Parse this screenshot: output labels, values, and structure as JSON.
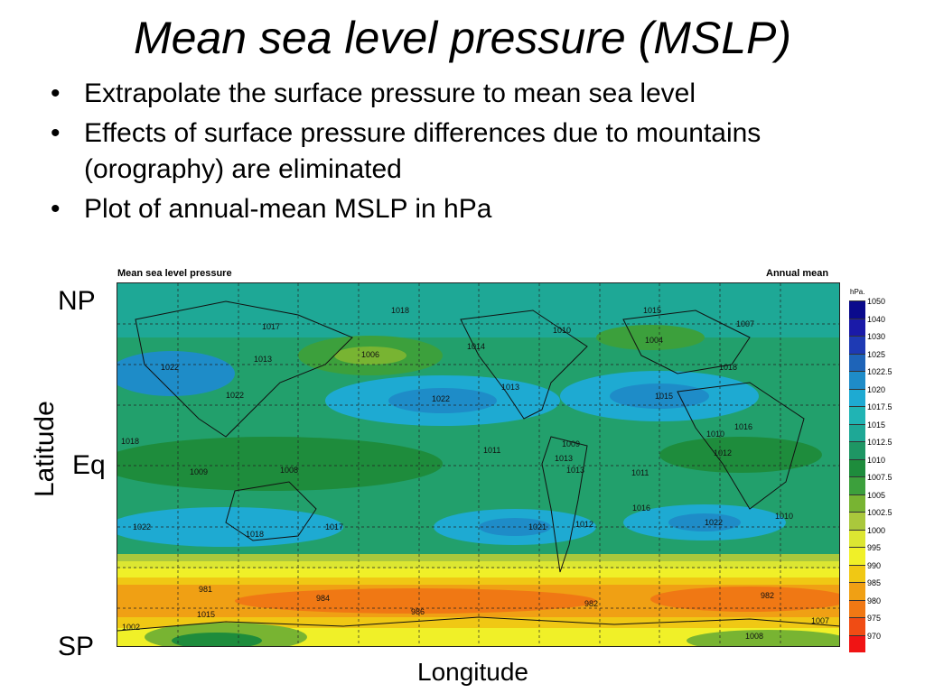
{
  "title": "Mean sea level pressure (MSLP)",
  "bullets": [
    "Extrapolate the surface pressure to mean sea level",
    "Effects of surface pressure differences due to mountains (orography) are eliminated",
    "Plot of annual-mean MSLP in hPa"
  ],
  "bullet_glyph": "•",
  "labels": {
    "np": "NP",
    "eq": "Eq",
    "sp": "SP",
    "latitude": "Latitude",
    "longitude": "Longitude"
  },
  "map": {
    "header_left": "Mean sea level pressure",
    "header_right": "Annual mean",
    "unit": "hPa.",
    "contour_labels": [
      "1018",
      "1015",
      "1017",
      "1007",
      "1004",
      "1010",
      "1006",
      "1014",
      "1013",
      "1022",
      "1013",
      "1018",
      "1022",
      "1015",
      "1022",
      "1016",
      "1011",
      "1009",
      "1013",
      "1010",
      "1012",
      "1011",
      "1009",
      "1018",
      "1008",
      "1013",
      "1016",
      "1022",
      "1017",
      "1018",
      "1021",
      "1012",
      "1022",
      "1010",
      "981",
      "984",
      "986",
      "982",
      "982",
      "1002",
      "1015",
      "1007",
      "1008"
    ],
    "colorbar": {
      "levels": [
        "1050",
        "1040",
        "1030",
        "1025",
        "1022.5",
        "1020",
        "1017.5",
        "1015",
        "1012.5",
        "1010",
        "1007.5",
        "1005",
        "1002.5",
        "1000",
        "995",
        "990",
        "985",
        "980",
        "975",
        "970"
      ],
      "colors": [
        "#0a0a8c",
        "#1a1aa8",
        "#1e3ab4",
        "#1e64b8",
        "#1e8cc8",
        "#1eaad2",
        "#20b4b4",
        "#1ea896",
        "#1e9664",
        "#1e8c3c",
        "#3ca03c",
        "#78b432",
        "#aac83c",
        "#dce632",
        "#f0f028",
        "#f0c814",
        "#f0a014",
        "#f07814",
        "#f04c14",
        "#f01414"
      ]
    }
  }
}
